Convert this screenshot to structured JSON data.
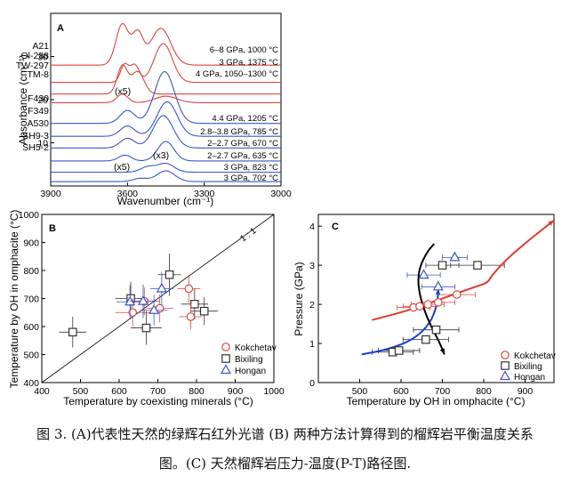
{
  "chart_data": [
    {
      "panel": "A",
      "type": "line",
      "xlabel": "Wavenumber (cm⁻¹)",
      "ylabel": "Absorbance (cm⁻¹)",
      "xlim": [
        3900,
        3000
      ],
      "ylim": [
        0,
        40
      ],
      "xticks": [
        "3900",
        "3600",
        "3300",
        "3000"
      ],
      "yticks": [
        "10",
        "20",
        "30"
      ],
      "series": [
        {
          "name": "A21",
          "cond": "6–8 GPa, 1000 °C",
          "color": "#d9473f",
          "base": 28.0,
          "amp": 9.5,
          "peaks": [
            [
              3620,
              1.0,
              35
            ],
            [
              3560,
              0.75,
              30
            ],
            [
              3470,
              0.9,
              55
            ]
          ]
        },
        {
          "name": "Ol-288",
          "cond": "3 GPa, 1375 °C",
          "color": "#d9473f",
          "base": 24.0,
          "amp": 9.0,
          "peaks": [
            [
              3612,
              0.45,
              22
            ],
            [
              3572,
              0.45,
              25
            ],
            [
              3460,
              1.0,
              50
            ]
          ]
        },
        {
          "name": "TW-297",
          "cond": "4 GPa, 1050–1300 °C",
          "color": "#d9473f",
          "base": 21.3,
          "amp": 6.5,
          "peaks": [
            [
              3620,
              1.0,
              28
            ],
            [
              3560,
              0.8,
              35
            ]
          ]
        },
        {
          "name": "TM-8",
          "cond": "",
          "color": "#d9473f",
          "base": 19.3,
          "amp": 2.5,
          "peaks": [
            [
              3620,
              0.8,
              30
            ],
            [
              3450,
              0.6,
              60
            ]
          ]
        },
        {
          "name": "F430",
          "cond": "4.4 GPa, 1205 °C",
          "color": "#3b55c8",
          "base": 14.5,
          "amp": 12.0,
          "peaks": [
            [
              3455,
              1.0,
              55
            ],
            [
              3600,
              0.25,
              40
            ]
          ]
        },
        {
          "name": "F349",
          "cond": "2.8–3.8 GPa, 785 °C",
          "color": "#3b55c8",
          "base": 11.5,
          "amp": 8.0,
          "peaks": [
            [
              3445,
              1.0,
              55
            ],
            [
              3600,
              0.3,
              40
            ]
          ]
        },
        {
          "name": "A530",
          "cond": "2–2.7 GPa, 670 °C",
          "color": "#3b55c8",
          "base": 8.8,
          "amp": 7.5,
          "peaks": [
            [
              3460,
              1.0,
              55
            ],
            [
              3600,
              0.3,
              40
            ]
          ]
        },
        {
          "name": "SH9-3",
          "cond": "2–2.7 GPa, 635 °C",
          "color": "#3b55c8",
          "base": 5.8,
          "amp": 4.5,
          "peaks": [
            [
              3450,
              1.0,
              45
            ],
            [
              3610,
              0.3,
              35
            ]
          ]
        },
        {
          "name": "SH5-2",
          "cond": "3 GPa, 823 °C",
          "color": "#3b55c8",
          "base": 3.2,
          "amp": 2.0,
          "peaks": [
            [
              3520,
              0.6,
              40
            ],
            [
              3450,
              1.0,
              45
            ]
          ]
        },
        {
          "name": "",
          "cond": "3 GPa, 702 °C",
          "color": "#3b55c8",
          "base": 1.0,
          "amp": 2.5,
          "peaks": [
            [
              3450,
              1.0,
              50
            ],
            [
              3550,
              0.3,
              40
            ]
          ]
        }
      ],
      "annotations": [
        "(x5)",
        "(x3)",
        "(x5)"
      ]
    },
    {
      "panel": "B",
      "type": "scatter",
      "xlabel": "Temperature by coexisting minerals (°C)",
      "ylabel": "Temperature by OH in omphacite (°C)",
      "xlim": [
        400,
        1000
      ],
      "ylim": [
        400,
        1000
      ],
      "xticks": [
        "400",
        "500",
        "600",
        "700",
        "800",
        "900",
        "1000"
      ],
      "yticks": [
        "400",
        "500",
        "600",
        "700",
        "800",
        "900",
        "1000"
      ],
      "line_label": "1 : 1",
      "legend": [
        {
          "name": "Kokchetav",
          "marker": "circle",
          "color": "#d9473f"
        },
        {
          "name": "Bixiling",
          "marker": "square",
          "color": "#333333"
        },
        {
          "name": "Hongan",
          "marker": "triangle",
          "color": "#3b55c8"
        }
      ],
      "points": [
        {
          "g": "Bixiling",
          "x": 480,
          "y": 580,
          "xe": 35,
          "ye": 55
        },
        {
          "g": "Bixiling",
          "x": 630,
          "y": 700,
          "xe": 40,
          "ye": 60
        },
        {
          "g": "Bixiling",
          "x": 670,
          "y": 595,
          "xe": 40,
          "ye": 60
        },
        {
          "g": "Bixiling",
          "x": 730,
          "y": 785,
          "xe": 30,
          "ye": 75
        },
        {
          "g": "Bixiling",
          "x": 795,
          "y": 680,
          "xe": 35,
          "ye": 55
        },
        {
          "g": "Bixiling",
          "x": 820,
          "y": 655,
          "xe": 35,
          "ye": 50
        },
        {
          "g": "Kokchetav",
          "x": 635,
          "y": 650,
          "xe": 45,
          "ye": 50
        },
        {
          "g": "Kokchetav",
          "x": 665,
          "y": 690,
          "xe": 40,
          "ye": 50
        },
        {
          "g": "Kokchetav",
          "x": 705,
          "y": 665,
          "xe": 35,
          "ye": 50
        },
        {
          "g": "Kokchetav",
          "x": 780,
          "y": 735,
          "xe": 30,
          "ye": 50
        },
        {
          "g": "Kokchetav",
          "x": 785,
          "y": 635,
          "xe": 30,
          "ye": 45
        },
        {
          "g": "Hongan",
          "x": 628,
          "y": 688,
          "xe": 35,
          "ye": 60
        },
        {
          "g": "Hongan",
          "x": 662,
          "y": 690,
          "xe": 35,
          "ye": 60
        },
        {
          "g": "Hongan",
          "x": 690,
          "y": 658,
          "xe": 35,
          "ye": 55
        },
        {
          "g": "Hongan",
          "x": 710,
          "y": 735,
          "xe": 30,
          "ye": 60
        }
      ]
    },
    {
      "panel": "C",
      "type": "scatter",
      "xlabel": "Temperature by OH in omphacite (°C)",
      "ylabel": "Pressure (GPa)",
      "xlim": [
        400,
        970
      ],
      "ylim": [
        0,
        4.3
      ],
      "xticks": [
        "500",
        "600",
        "700",
        "800",
        "900"
      ],
      "yticks": [
        "0",
        "1",
        "2",
        "3",
        "4"
      ],
      "legend": [
        {
          "name": "Kokchetav",
          "marker": "circle",
          "color": "#d9473f"
        },
        {
          "name": "Bixiling",
          "marker": "square",
          "color": "#333333"
        },
        {
          "name": "Hongan",
          "marker": "triangle",
          "color": "#3b55c8"
        }
      ],
      "points": [
        {
          "g": "Kokchetav",
          "x": 630,
          "y": 1.92,
          "xe": 40,
          "ye": 0
        },
        {
          "g": "Kokchetav",
          "x": 645,
          "y": 1.95,
          "xe": 40,
          "ye": 0
        },
        {
          "g": "Kokchetav",
          "x": 665,
          "y": 2.0,
          "xe": 40,
          "ye": 0
        },
        {
          "g": "Kokchetav",
          "x": 690,
          "y": 2.05,
          "xe": 40,
          "ye": 0
        },
        {
          "g": "Kokchetav",
          "x": 735,
          "y": 2.25,
          "xe": 45,
          "ye": 0
        },
        {
          "g": "Bixiling",
          "x": 580,
          "y": 0.78,
          "xe": 50,
          "ye": 0
        },
        {
          "g": "Bixiling",
          "x": 595,
          "y": 0.82,
          "xe": 50,
          "ye": 0
        },
        {
          "g": "Bixiling",
          "x": 660,
          "y": 1.1,
          "xe": 55,
          "ye": 0
        },
        {
          "g": "Bixiling",
          "x": 685,
          "y": 1.35,
          "xe": 55,
          "ye": 0
        },
        {
          "g": "Bixiling",
          "x": 700,
          "y": 3.0,
          "xe": 40,
          "ye": 0
        },
        {
          "g": "Bixiling",
          "x": 785,
          "y": 3.0,
          "xe": 65,
          "ye": 0
        },
        {
          "g": "Hongan",
          "x": 655,
          "y": 2.75,
          "xe": 40,
          "ye": 0
        },
        {
          "g": "Hongan",
          "x": 690,
          "y": 2.45,
          "xe": 40,
          "ye": 0
        },
        {
          "g": "Hongan",
          "x": 730,
          "y": 3.2,
          "xe": 30,
          "ye": 0
        }
      ],
      "paths": [
        {
          "name": "red",
          "color": "#e03a2e",
          "arrow": true,
          "pts": [
            [
              530,
              1.6
            ],
            [
              620,
              1.85
            ],
            [
              700,
              2.15
            ],
            [
              780,
              2.45
            ],
            [
              810,
              2.55
            ],
            [
              820,
              2.75
            ],
            [
              860,
              3.2
            ],
            [
              910,
              3.65
            ],
            [
              970,
              4.15
            ]
          ]
        },
        {
          "name": "blue",
          "color": "#1f3fd0",
          "arrow": true,
          "pts": [
            [
              505,
              0.72
            ],
            [
              570,
              0.85
            ],
            [
              630,
              1.1
            ],
            [
              670,
              1.5
            ],
            [
              688,
              2.0
            ],
            [
              690,
              2.4
            ]
          ]
        },
        {
          "name": "black",
          "color": "#000000",
          "arrow": true,
          "pts": [
            [
              680,
              3.55
            ],
            [
              660,
              3.3
            ],
            [
              640,
              2.8
            ],
            [
              645,
              2.2
            ],
            [
              665,
              1.6
            ],
            [
              692,
              1.05
            ],
            [
              705,
              0.72
            ]
          ]
        }
      ]
    }
  ],
  "caption": {
    "line1": "图 3. (A)代表性天然的绿辉石红外光谱 (B) 两种方法计算得到的榴辉岩平衡温度关系",
    "line2": "图。(C) 天然榴辉岩压力-温度(P-T)路径图."
  }
}
